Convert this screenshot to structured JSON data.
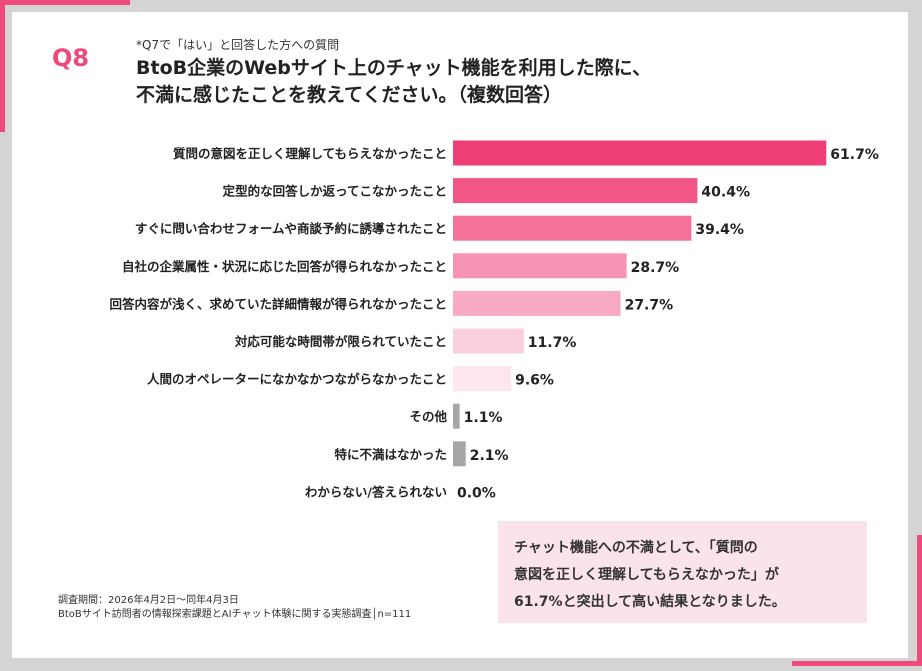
{
  "header": {
    "qnum": "Q8",
    "subq": "*Q7で「はい」と回答した方への質問",
    "title": "BtoB企業のWebサイト上のチャット機能を利用した際に、\n不満に感じたことを教えてください。（複数回答）"
  },
  "chart_data": {
    "type": "bar",
    "orientation": "horizontal",
    "categories": [
      "質問の意図を正しく理解してもらえなかったこと",
      "定型的な回答しか返ってこなかったこと",
      "すぐに問い合わせフォームや商談予約に誘導されたこと",
      "自社の企業属性・状況に応じた回答が得られなかったこと",
      "回答内容が浅く、求めていた詳細情報が得られなかったこと",
      "対応可能な時間帯が限られていたこと",
      "人間のオペレーターになかなかつながらなかったこと",
      "その他",
      "特に不満はなかった",
      "わからない/答えられない"
    ],
    "values": [
      61.7,
      40.4,
      39.4,
      28.7,
      27.7,
      11.7,
      9.6,
      1.1,
      2.1,
      0.0
    ],
    "value_labels": [
      "61.7%",
      "40.4%",
      "39.4%",
      "28.7%",
      "27.7%",
      "11.7%",
      "9.6%",
      "1.1%",
      "2.1%",
      "0.0%"
    ],
    "colors": [
      "#ee3f74",
      "#f25687",
      "#f47198",
      "#f794b3",
      "#f8a9c3",
      "#fbd0de",
      "#fde6ee",
      "#a6a6a6",
      "#a6a6a6",
      "#a6a6a6"
    ],
    "xlim": [
      0,
      62
    ],
    "grid": false,
    "legend": "none"
  },
  "note": {
    "text": "チャット機能への不満として、「質問の\n意図を正しく理解してもらえなかった」が\n61.7%と突出して高い結果となりました。"
  },
  "footer": {
    "period": "調査期間：2026年4月2日～同年4月3日",
    "survey": "BtoBサイト訪問者の情報探索課題とAIチャット体験に関する実態調査│n=111"
  },
  "colors": {
    "accent": "#ee4a7b",
    "note_bg": "#fbe3ec"
  }
}
